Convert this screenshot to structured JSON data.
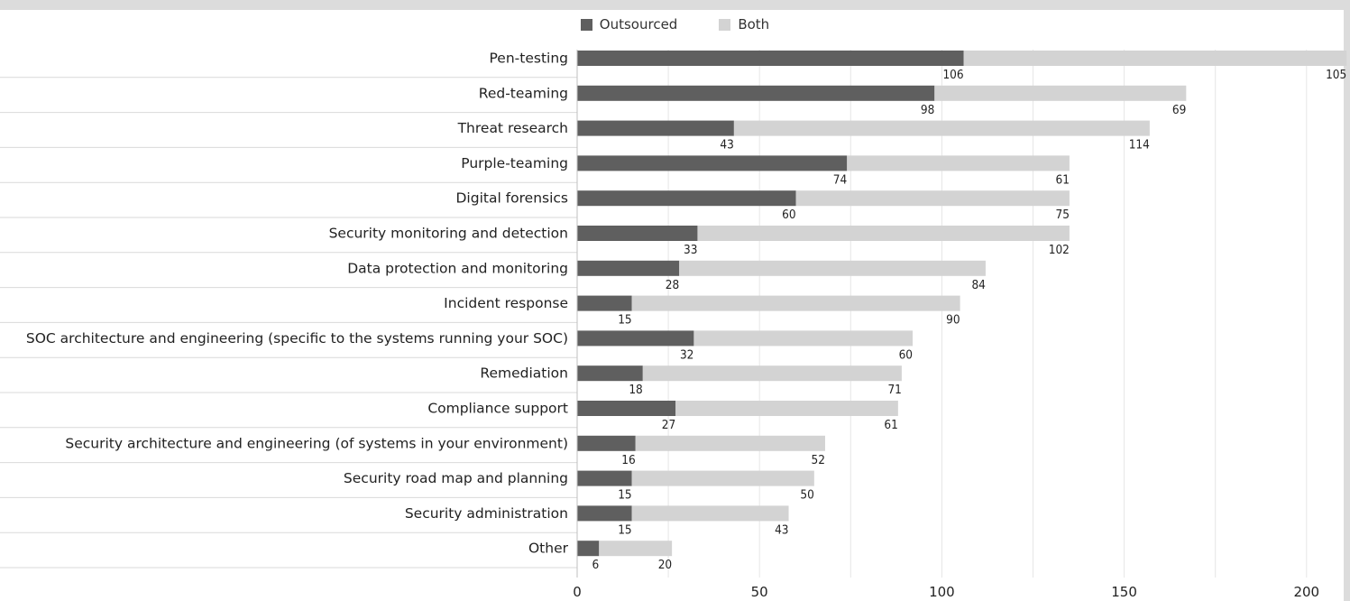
{
  "chart_data": {
    "type": "bar",
    "orientation": "horizontal",
    "stacked": true,
    "title": "",
    "xlabel": "",
    "ylabel": "",
    "categories": [
      "Pen-testing",
      "Red-teaming",
      "Threat research",
      "Purple-teaming",
      "Digital forensics",
      "Security monitoring and detection",
      "Data protection and monitoring",
      "Incident response",
      "SOC architecture and engineering (specific to the systems running your SOC)",
      "Remediation",
      "Compliance support",
      "Security architecture and engineering (of systems in your environment)",
      "Security road map and planning",
      "Security administration",
      "Other"
    ],
    "series": [
      {
        "name": "Outsourced",
        "color": "#5f5f5f",
        "values": [
          106,
          98,
          43,
          74,
          60,
          33,
          28,
          15,
          32,
          18,
          27,
          16,
          15,
          15,
          6
        ]
      },
      {
        "name": "Both",
        "color": "#d3d3d3",
        "values": [
          105,
          69,
          114,
          61,
          75,
          102,
          84,
          90,
          60,
          71,
          61,
          52,
          50,
          43,
          20
        ]
      }
    ],
    "xlim": [
      0,
      205
    ],
    "xticks": [
      "0",
      "50",
      "100",
      "150",
      "200"
    ],
    "grid": true,
    "legend_position": "top-center"
  }
}
